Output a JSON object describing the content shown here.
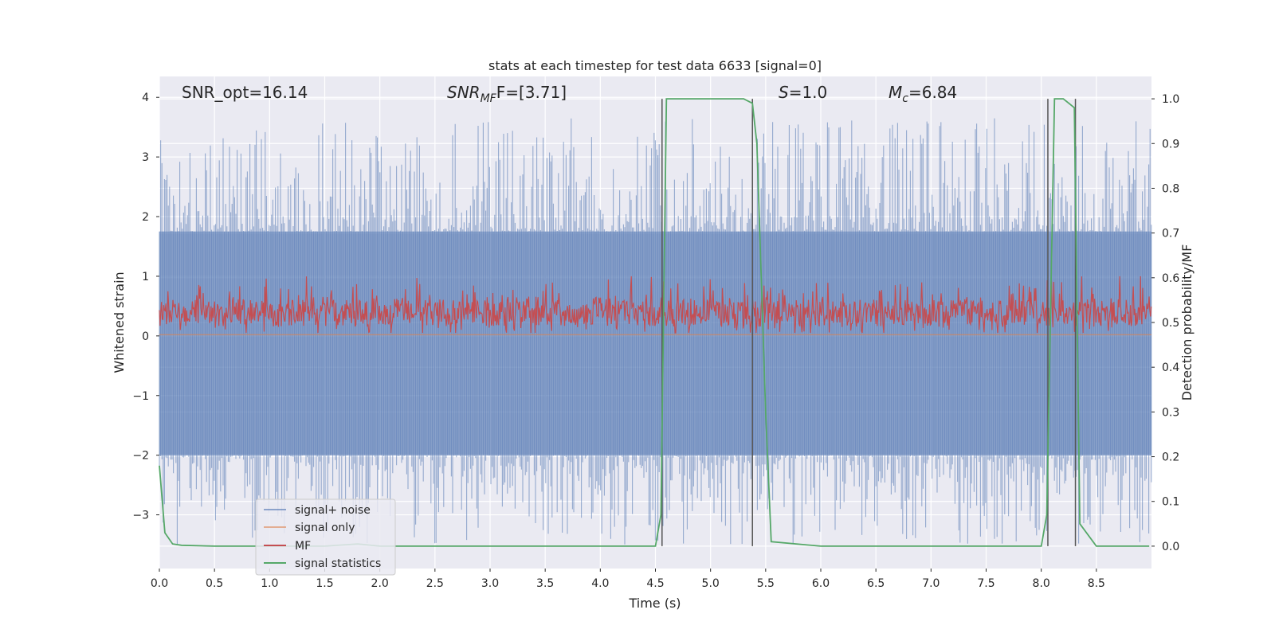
{
  "chart_data": {
    "type": "line",
    "title": "stats at each timestep for test data 6633 [signal=0]",
    "xlabel": "Time (s)",
    "ylabel": "Whitened strain",
    "ylabel_right": "Detection probability/MF",
    "xlim": [
      0.0,
      9.0
    ],
    "ylim": [
      -3.9,
      4.35
    ],
    "ylim_right": [
      -0.05,
      1.05
    ],
    "x_ticks": [
      "0.0",
      "0.5",
      "1.0",
      "1.5",
      "2.0",
      "2.5",
      "3.0",
      "3.5",
      "4.0",
      "4.5",
      "5.0",
      "5.5",
      "6.0",
      "6.5",
      "7.0",
      "7.5",
      "8.0",
      "8.5"
    ],
    "x_tick_values": [
      0,
      0.5,
      1,
      1.5,
      2,
      2.5,
      3,
      3.5,
      4,
      4.5,
      5,
      5.5,
      6,
      6.5,
      7,
      7.5,
      8,
      8.5
    ],
    "y_ticks": [
      "4",
      "3",
      "2",
      "1",
      "0",
      "−1",
      "−2",
      "−3"
    ],
    "y_tick_values": [
      4,
      3,
      2,
      1,
      0,
      -1,
      -2,
      -3
    ],
    "y_ticks_right": [
      "1.0",
      "0.9",
      "0.8",
      "0.7",
      "0.6",
      "0.5",
      "0.4",
      "0.3",
      "0.2",
      "0.1",
      "0.0"
    ],
    "y_tick_values_right": [
      1.0,
      0.9,
      0.8,
      0.7,
      0.6,
      0.5,
      0.4,
      0.3,
      0.2,
      0.1,
      0.0
    ],
    "grid": true,
    "legend_position": "bottom-left",
    "annotations": {
      "snr_opt": "SNR_opt=16.14",
      "snr_mf_label": "SNR",
      "snr_mf_sub": "MF",
      "snr_mf_value": "F=[3.71]",
      "s_label": "S",
      "s_value": "=1.0",
      "mc_label": "M",
      "mc_sub": "c",
      "mc_value": "=6.84"
    },
    "series": [
      {
        "name": "signal+ noise",
        "color": "#4c72b0",
        "opacity": 0.5,
        "axis": "left",
        "description": "noise band",
        "band": [
          -2.0,
          1.75
        ]
      },
      {
        "name": "signal only",
        "color": "#dd8452",
        "opacity": 0.5,
        "axis": "left",
        "value": 0.02
      },
      {
        "name": "MF",
        "color": "#c44e52",
        "axis": "left",
        "band": [
          0.05,
          0.75
        ]
      },
      {
        "name": "signal statistics",
        "color": "#55a868",
        "axis": "right",
        "x": [
          0.0,
          0.05,
          0.12,
          0.2,
          0.5,
          1.0,
          1.5,
          1.8,
          2.0,
          2.5,
          3.0,
          3.5,
          4.0,
          4.5,
          4.55,
          4.6,
          4.65,
          5.0,
          5.3,
          5.38,
          5.42,
          5.5,
          5.55,
          6.0,
          7.0,
          7.5,
          8.0,
          8.05,
          8.12,
          8.2,
          8.25,
          8.3,
          8.35,
          8.5,
          8.98
        ],
        "y": [
          0.18,
          0.03,
          0.005,
          0.002,
          0.0,
          0.0,
          0.0,
          0.005,
          0.0,
          0.0,
          0.0,
          0.0,
          0.0,
          0.0,
          0.07,
          1.0,
          1.0,
          1.0,
          1.0,
          0.99,
          0.9,
          0.3,
          0.01,
          0.0,
          0.0,
          0.0,
          0.0,
          0.07,
          1.0,
          1.0,
          0.99,
          0.98,
          0.05,
          0.0,
          0.0
        ]
      }
    ],
    "vertical_markers": [
      4.56,
      5.38,
      8.06,
      8.31
    ],
    "legend": [
      "signal+ noise",
      "signal only",
      "MF",
      "signal statistics"
    ]
  },
  "colors": {
    "plot_bg": "#eaeaf2",
    "grid": "#ffffff",
    "marker_line": "#555555"
  }
}
